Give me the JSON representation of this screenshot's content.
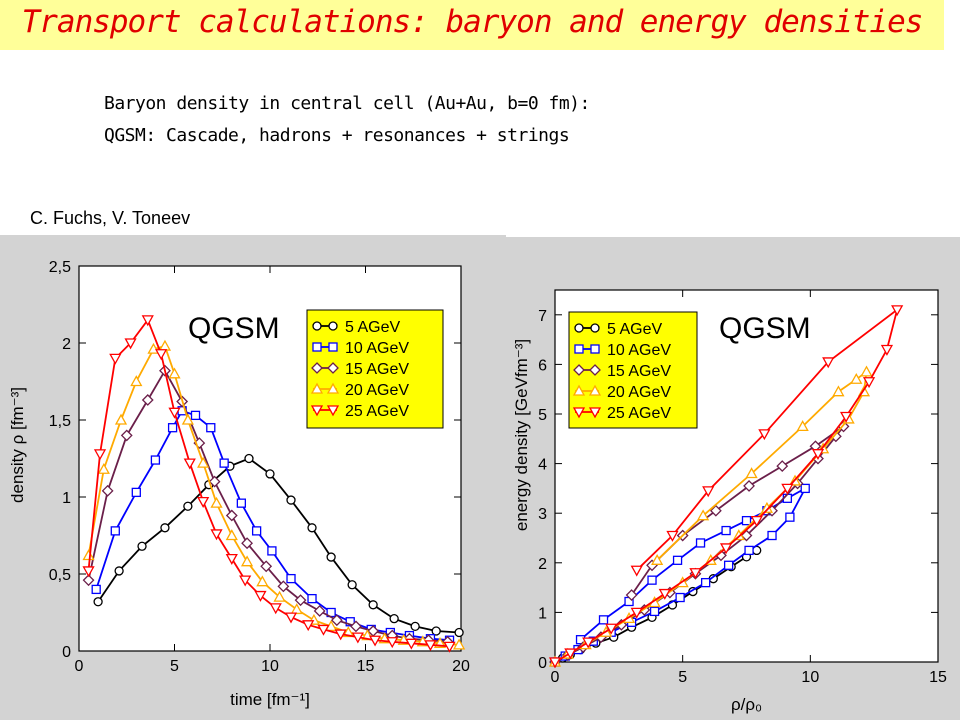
{
  "header": {
    "title": "Transport calculations: baryon and energy densities",
    "line1": "Baryon density in central cell (Au+Au, b=0 fm):",
    "line2": "QGSM: Cascade, hadrons + resonances + strings",
    "author": "C. Fuchs, V. Toneev"
  },
  "chart_data": [
    {
      "type": "line",
      "label": "QGSM",
      "xlabel": "time [fm⁻¹]",
      "ylabel": "density ρ [fm⁻³]",
      "xlim": [
        0,
        20
      ],
      "ylim": [
        0,
        2.5
      ],
      "xticks": [
        "0",
        "5",
        "10",
        "15",
        "20"
      ],
      "yticks": [
        "0",
        "0,5",
        "1",
        "1,5",
        "2",
        "2,5"
      ],
      "legend_position": "top-right",
      "series": [
        {
          "name": "5 AGeV",
          "color": "#000000",
          "marker": "circle",
          "x": [
            1,
            2.1,
            3.3,
            4.5,
            5.7,
            6.8,
            7.9,
            8.9,
            10,
            11.1,
            12.2,
            13.2,
            14.3,
            15.4,
            16.5,
            17.6,
            18.7,
            19.9
          ],
          "y": [
            0.32,
            0.52,
            0.68,
            0.8,
            0.94,
            1.08,
            1.2,
            1.25,
            1.15,
            0.98,
            0.8,
            0.61,
            0.43,
            0.3,
            0.21,
            0.16,
            0.13,
            0.12
          ]
        },
        {
          "name": "10 AGeV",
          "color": "#0000ff",
          "marker": "square",
          "x": [
            0.9,
            1.9,
            3,
            4,
            4.9,
            5.4,
            6.1,
            6.9,
            7.6,
            8.5,
            9.3,
            10.1,
            11.1,
            12.2,
            13.2,
            14.2,
            15.3,
            16.3,
            17.3,
            18.4,
            19.4
          ],
          "y": [
            0.4,
            0.78,
            1.03,
            1.24,
            1.45,
            1.56,
            1.53,
            1.45,
            1.22,
            0.96,
            0.78,
            0.65,
            0.47,
            0.34,
            0.25,
            0.19,
            0.14,
            0.12,
            0.1,
            0.08,
            0.07
          ]
        },
        {
          "name": "15 AGeV",
          "color": "#6b1f4a",
          "marker": "diamond",
          "x": [
            0.5,
            1.5,
            2.5,
            3.6,
            4.5,
            5.4,
            6.3,
            7.1,
            8,
            8.8,
            9.8,
            10.7,
            11.6,
            12.6,
            13.5,
            14.5,
            15.4,
            16.4,
            17.3,
            18.3,
            19.3
          ],
          "y": [
            0.46,
            1.04,
            1.4,
            1.63,
            1.82,
            1.62,
            1.35,
            1.1,
            0.88,
            0.7,
            0.55,
            0.42,
            0.33,
            0.26,
            0.2,
            0.16,
            0.13,
            0.1,
            0.08,
            0.07,
            0.06
          ]
        },
        {
          "name": "20 AGeV",
          "color": "#ffaa00",
          "marker": "triangle-up",
          "x": [
            0.5,
            1.3,
            2.2,
            3,
            3.9,
            4.5,
            5,
            5.7,
            6.5,
            7.2,
            8,
            8.8,
            9.6,
            10.5,
            11.4,
            12.3,
            13.2,
            14.1,
            15.1,
            16,
            17,
            18,
            18.9,
            19.9
          ],
          "y": [
            0.62,
            1.18,
            1.5,
            1.75,
            1.96,
            1.98,
            1.8,
            1.5,
            1.22,
            0.96,
            0.75,
            0.58,
            0.45,
            0.35,
            0.27,
            0.2,
            0.16,
            0.12,
            0.1,
            0.08,
            0.07,
            0.06,
            0.05,
            0.04
          ]
        },
        {
          "name": "25 AGeV",
          "color": "#ff0000",
          "marker": "triangle-down",
          "x": [
            0.5,
            1.1,
            1.9,
            2.7,
            3.6,
            4.3,
            5,
            5.8,
            6.5,
            7.2,
            8,
            8.7,
            9.5,
            10.3,
            11.1,
            12,
            12.8,
            13.7,
            14.6,
            15.5,
            16.4,
            17.4,
            18.4,
            19.4
          ],
          "y": [
            0.52,
            1.28,
            1.9,
            2.0,
            2.15,
            1.93,
            1.55,
            1.22,
            0.97,
            0.76,
            0.6,
            0.46,
            0.36,
            0.28,
            0.22,
            0.17,
            0.14,
            0.11,
            0.09,
            0.07,
            0.06,
            0.05,
            0.04,
            0.03
          ]
        }
      ]
    },
    {
      "type": "line",
      "label": "QGSM",
      "xlabel": "ρ/ρ₀",
      "ylabel": "energy density [GeVfm⁻³]",
      "xlim": [
        0,
        15
      ],
      "ylim": [
        0,
        7.5
      ],
      "xticks": [
        "0",
        "5",
        "10",
        "15"
      ],
      "yticks": [
        "0",
        "1",
        "2",
        "3",
        "4",
        "5",
        "6",
        "7"
      ],
      "legend_position": "top-left",
      "series": [
        {
          "name": "5 AGeV",
          "color": "#000000",
          "marker": "circle",
          "x": [
            0,
            0.3,
            0.6,
            1,
            1.6,
            2.3,
            3,
            3.8,
            4.6,
            5.4,
            6.2,
            6.9,
            7.5,
            7.9
          ],
          "y": [
            0,
            0.08,
            0.15,
            0.25,
            0.38,
            0.5,
            0.7,
            0.9,
            1.15,
            1.42,
            1.68,
            1.92,
            2.12,
            2.25
          ]
        },
        {
          "name": "10 AGeV",
          "color": "#0000ff",
          "marker": "square",
          "x": [
            0,
            0.4,
            0.9,
            1.5,
            2.2,
            3,
            3.9,
            4.9,
            5.9,
            6.8,
            7.6,
            8.5,
            9.2,
            9.8,
            9.1,
            8.3,
            7.5,
            6.7,
            5.7,
            4.8,
            3.8,
            2.9,
            1.9,
            1
          ],
          "y": [
            0,
            0.12,
            0.25,
            0.42,
            0.6,
            0.8,
            1.02,
            1.3,
            1.6,
            1.95,
            2.25,
            2.55,
            2.92,
            3.5,
            3.3,
            3.05,
            2.85,
            2.65,
            2.4,
            2.05,
            1.65,
            1.22,
            0.85,
            0.45
          ]
        },
        {
          "name": "15 AGeV",
          "color": "#6b1f4a",
          "marker": "diamond",
          "x": [
            0,
            0.5,
            1.1,
            1.8,
            2.6,
            3.5,
            4.5,
            5.5,
            6.5,
            7.5,
            8.5,
            9.5,
            10.3,
            11,
            11.3,
            10.2,
            8.9,
            7.6,
            6.3,
            5,
            3.8,
            3
          ],
          "y": [
            0,
            0.14,
            0.3,
            0.5,
            0.75,
            1.05,
            1.4,
            1.78,
            2.15,
            2.55,
            3.05,
            3.6,
            4.1,
            4.55,
            4.75,
            4.35,
            3.95,
            3.55,
            3.05,
            2.55,
            1.95,
            1.35
          ]
        },
        {
          "name": "20 AGeV",
          "color": "#ffaa00",
          "marker": "triangle-up",
          "x": [
            0,
            0.5,
            1.2,
            2,
            2.9,
            3.9,
            5,
            6.1,
            7.2,
            8.3,
            9.4,
            10.5,
            11.5,
            12.1,
            12.2,
            11.8,
            11.1,
            9.7,
            7.7,
            5.8,
            4
          ],
          "y": [
            0,
            0.16,
            0.35,
            0.6,
            0.88,
            1.2,
            1.6,
            2.05,
            2.55,
            3.1,
            3.65,
            4.3,
            4.9,
            5.45,
            5.85,
            5.7,
            5.45,
            4.75,
            3.8,
            2.95,
            2.05
          ]
        },
        {
          "name": "25 AGeV",
          "color": "#ff0000",
          "marker": "triangle-down",
          "x": [
            0,
            0.6,
            1.3,
            2.2,
            3.2,
            4.3,
            5.5,
            6.7,
            7.9,
            9.1,
            10.3,
            11.4,
            12.3,
            13,
            13.4,
            10.7,
            8.2,
            6,
            4.6,
            3.2
          ],
          "y": [
            0,
            0.18,
            0.4,
            0.68,
            1.0,
            1.38,
            1.8,
            2.3,
            2.85,
            3.5,
            4.2,
            4.95,
            5.65,
            6.3,
            7.1,
            6.05,
            4.6,
            3.45,
            2.55,
            1.85
          ]
        }
      ]
    }
  ]
}
